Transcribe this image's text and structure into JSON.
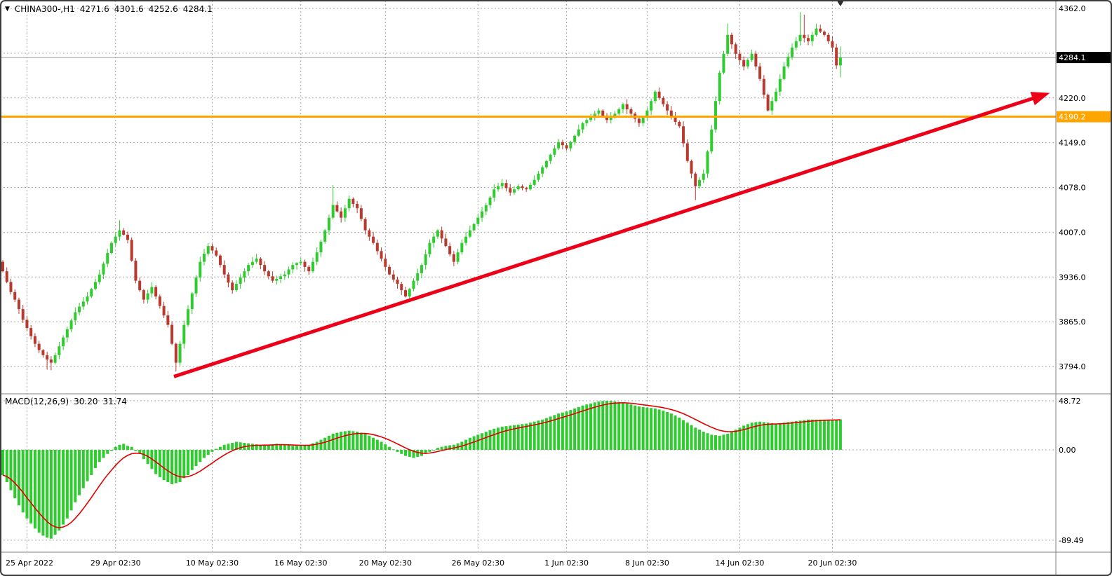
{
  "icons": {
    "dropdown_glyph": "▼"
  },
  "colors": {
    "up": "#2ecc2e",
    "down": "#b8392e",
    "grid": "#a6a6a6",
    "separator": "#808080",
    "bid_line": "#9a9a9a",
    "histogram": "#2ecc2e",
    "signal": "#e00000",
    "arrow": "#ed0017",
    "orange_line": "#ffa500",
    "axis_text": "#000000",
    "bid_box_bg": "#000000",
    "bid_box_fg": "#ffffff",
    "orange_box_fg": "#ffffff",
    "shift_marker": "#2b2b2b",
    "border": "#3c3c3c"
  },
  "chart_data": [
    {
      "type": "candlestick",
      "title": "CHINA300-,H1",
      "symbol": "CHINA300-",
      "timeframe": "H1",
      "current_ohlc": {
        "open": 4271.6,
        "high": 4301.6,
        "low": 4252.6,
        "close": 4284.1
      },
      "first_open": 3960,
      "y_axis": {
        "ticks": [
          {
            "v": 4362.0,
            "label": "4362.0"
          },
          {
            "v": 4220.0,
            "label": "4220.0"
          },
          {
            "v": 4149.0,
            "label": "4149.0"
          },
          {
            "v": 4078.0,
            "label": "4078.0"
          },
          {
            "v": 4007.0,
            "label": "4007.0"
          },
          {
            "v": 3936.0,
            "label": "3936.0"
          },
          {
            "v": 3865.0,
            "label": "3865.0"
          },
          {
            "v": 3794.0,
            "label": "3794.0"
          }
        ],
        "gridline_values": [
          4362,
          4291,
          4220,
          4149,
          4078,
          4007,
          3936,
          3865,
          3794
        ]
      },
      "x_axis": {
        "ticks": [
          {
            "index": 6,
            "label": "25 Apr 2022",
            "align": "left"
          },
          {
            "index": 28,
            "label": "29 Apr 02:30"
          },
          {
            "index": 52,
            "label": "10 May 02:30"
          },
          {
            "index": 74,
            "label": "16 May 02:30"
          },
          {
            "index": 95,
            "label": "20 May 02:30"
          },
          {
            "index": 118,
            "label": "26 May 02:30"
          },
          {
            "index": 140,
            "label": "1 Jun 02:30"
          },
          {
            "index": 160,
            "label": "8 Jun 02:30"
          },
          {
            "index": 183,
            "label": "14 Jun 02:30"
          },
          {
            "index": 206,
            "label": "20 Jun 02:30"
          }
        ]
      },
      "markers": {
        "bid": {
          "value": 4284.1,
          "label": "4284.1"
        },
        "orange": {
          "value": 4190.2,
          "label": "4190.2"
        }
      },
      "annotations": {
        "horizontal_line": {
          "price": 4190.2
        },
        "trend_arrow": {
          "from_index": 42.5,
          "from_price": 3778,
          "to_index": 260,
          "to_price": 4228
        }
      },
      "wick_overrides": {
        "11": {
          "low": 3789
        },
        "12": {
          "low": 3788
        },
        "29": {
          "high": 4026
        },
        "43": {
          "low": 3786
        },
        "82": {
          "high": 4082
        },
        "172": {
          "low": 4058
        },
        "180": {
          "high": 4338
        },
        "198": {
          "high": 4356
        },
        "199": {
          "high": 4352
        },
        "208": {
          "high": 4301.6,
          "low": 4252.6
        }
      },
      "closes": [
        3945,
        3928,
        3912,
        3900,
        3885,
        3868,
        3855,
        3842,
        3830,
        3820,
        3812,
        3805,
        3800,
        3812,
        3826,
        3840,
        3853,
        3867,
        3880,
        3889,
        3897,
        3905,
        3917,
        3928,
        3940,
        3957,
        3974,
        3990,
        4000,
        4010,
        4003,
        3995,
        3962,
        3930,
        3915,
        3900,
        3910,
        3920,
        3905,
        3890,
        3875,
        3860,
        3830,
        3800,
        3830,
        3860,
        3885,
        3910,
        3935,
        3960,
        3973,
        3985,
        3978,
        3970,
        3955,
        3940,
        3927,
        3915,
        3925,
        3935,
        3945,
        3955,
        3960,
        3965,
        3955,
        3945,
        3937,
        3930,
        3933,
        3937,
        3940,
        3948,
        3955,
        3958,
        3960,
        3952,
        3945,
        3960,
        3975,
        3992,
        4010,
        4030,
        4050,
        4040,
        4030,
        4045,
        4060,
        4052,
        4045,
        4028,
        4010,
        4000,
        3990,
        3977,
        3965,
        3952,
        3940,
        3932,
        3925,
        3915,
        3905,
        3917,
        3930,
        3942,
        3955,
        3972,
        3990,
        4000,
        4010,
        3997,
        3985,
        3972,
        3960,
        3975,
        3990,
        4000,
        4010,
        4020,
        4030,
        4040,
        4050,
        4062,
        4075,
        4080,
        4085,
        4077,
        4070,
        4075,
        4080,
        4077,
        4075,
        4082,
        4090,
        4100,
        4110,
        4120,
        4130,
        4140,
        4150,
        4145,
        4140,
        4150,
        4160,
        4170,
        4180,
        4185,
        4190,
        4195,
        4200,
        4192,
        4185,
        4190,
        4195,
        4202,
        4210,
        4202,
        4195,
        4187,
        4180,
        4190,
        4200,
        4215,
        4230,
        4220,
        4210,
        4200,
        4190,
        4182,
        4175,
        4148,
        4120,
        4100,
        4080,
        4090,
        4100,
        4135,
        4170,
        4215,
        4260,
        4290,
        4320,
        4305,
        4290,
        4280,
        4270,
        4280,
        4290,
        4270,
        4250,
        4225,
        4200,
        4215,
        4230,
        4250,
        4270,
        4285,
        4300,
        4310,
        4320,
        4315,
        4310,
        4320,
        4330,
        4325,
        4320,
        4310,
        4300,
        4271.6,
        4284.1
      ]
    },
    {
      "type": "bar",
      "title": "MACD(12,26,9)",
      "macd_value": "30.20",
      "signal_value": "31.74",
      "legend_position": "top-left",
      "y_ticks": [
        {
          "v": 48.72,
          "label": "48.72"
        },
        {
          "v": 0,
          "label": "0.00"
        },
        {
          "v": -89.49,
          "label": "-89.49"
        }
      ],
      "values": [
        -25,
        -32,
        -40,
        -48,
        -55,
        -62,
        -68,
        -73,
        -78,
        -82,
        -85,
        -87,
        -88,
        -84,
        -80,
        -74,
        -68,
        -60,
        -52,
        -45,
        -38,
        -31,
        -25,
        -18,
        -12,
        -8,
        -4,
        -1,
        3,
        5,
        6,
        4,
        3,
        -1,
        -4,
        -9,
        -14,
        -19,
        -24,
        -27,
        -30,
        -32,
        -34,
        -33,
        -32,
        -28,
        -25,
        -20,
        -16,
        -12,
        -8,
        -5,
        -2,
        1,
        3,
        5,
        6,
        7,
        8,
        7.5,
        7,
        6.5,
        6,
        5.5,
        5,
        5,
        5,
        5.5,
        6,
        5.5,
        5,
        4.5,
        4,
        4,
        4,
        4.5,
        5,
        6.5,
        8,
        10,
        12,
        14,
        16,
        17,
        18,
        18.5,
        19,
        18.5,
        18,
        17,
        16,
        14,
        12,
        10,
        8,
        5.5,
        3,
        0.5,
        -2,
        -4,
        -6,
        -7,
        -8,
        -7,
        -6,
        -4,
        -2,
        0,
        2,
        3,
        4,
        4.5,
        5,
        6.5,
        8,
        10,
        12,
        13.5,
        15,
        16.5,
        18,
        19.5,
        21,
        22,
        23,
        23.5,
        24,
        24.5,
        25,
        25.5,
        26,
        27,
        28,
        29,
        30,
        31.5,
        33,
        34.5,
        36,
        37,
        38,
        39.5,
        41,
        42.5,
        44,
        45,
        46,
        47,
        48,
        48.4,
        48.7,
        48.4,
        48,
        47.5,
        47,
        46,
        45,
        44,
        43,
        42.5,
        42,
        41.5,
        41,
        40,
        39,
        37.5,
        36,
        34,
        32,
        29.5,
        27,
        24.5,
        22,
        20,
        18,
        16.5,
        15,
        14.5,
        14,
        15,
        16,
        18,
        20,
        22,
        24,
        25.5,
        27,
        27.5,
        28,
        27.5,
        27,
        26.5,
        26,
        26.5,
        27,
        27.5,
        28,
        28.5,
        29,
        29.5,
        30,
        30,
        30,
        30,
        30,
        30,
        30,
        30.1,
        30.2
      ]
    }
  ]
}
